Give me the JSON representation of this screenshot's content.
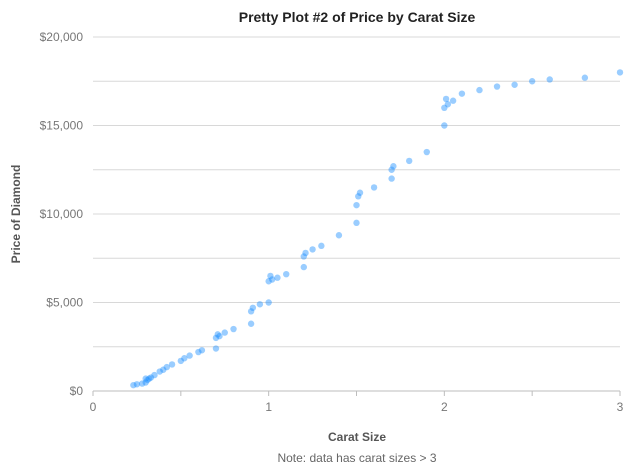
{
  "chart_data": {
    "type": "scatter",
    "title": "Pretty Plot #2 of Price by Carat Size",
    "xlabel": "Carat Size",
    "ylabel": "Price of Diamond",
    "note": "Note: data has carat sizes > 3",
    "xlim": [
      0,
      3
    ],
    "ylim": [
      0,
      20000
    ],
    "x_ticks": [
      {
        "value": 0,
        "label": "0"
      },
      {
        "value": 0.5,
        "label": ""
      },
      {
        "value": 1,
        "label": "1"
      },
      {
        "value": 1.5,
        "label": ""
      },
      {
        "value": 2,
        "label": "2"
      },
      {
        "value": 2.5,
        "label": ""
      },
      {
        "value": 3,
        "label": "3"
      }
    ],
    "y_ticks": [
      {
        "value": 0,
        "label": "$0"
      },
      {
        "value": 5000,
        "label": "$5,000"
      },
      {
        "value": 10000,
        "label": "$10,000"
      },
      {
        "value": 15000,
        "label": "$15,000"
      },
      {
        "value": 20000,
        "label": "$20,000"
      }
    ],
    "grid": true,
    "marker_color": "#1e90ff",
    "marker_opacity": 0.14,
    "series": [
      {
        "x": [
          0.23,
          0.25,
          0.28,
          0.3,
          0.3,
          0.31,
          0.32,
          0.33,
          0.35,
          0.38,
          0.4,
          0.42,
          0.45,
          0.5,
          0.52,
          0.55,
          0.6,
          0.62,
          0.7,
          0.7,
          0.71,
          0.72,
          0.75,
          0.8,
          0.9,
          0.9,
          0.91,
          0.95,
          1.0,
          1.0,
          1.01,
          1.02,
          1.05,
          1.1,
          1.2,
          1.2,
          1.21,
          1.25,
          1.3,
          1.4,
          1.5,
          1.5,
          1.51,
          1.52,
          1.6,
          1.7,
          1.7,
          1.71,
          1.8,
          1.9,
          2.0,
          2.0,
          2.01,
          2.02,
          2.05,
          2.1,
          2.2,
          2.3,
          2.4,
          2.5,
          2.6,
          2.8,
          3.0
        ],
        "y": [
          330,
          380,
          420,
          480,
          700,
          620,
          700,
          760,
          900,
          1100,
          1200,
          1350,
          1500,
          1700,
          1850,
          2000,
          2200,
          2300,
          2400,
          3000,
          3200,
          3100,
          3300,
          3500,
          3800,
          4500,
          4700,
          4900,
          5000,
          6200,
          6500,
          6300,
          6400,
          6600,
          7000,
          7600,
          7800,
          8000,
          8200,
          8800,
          9500,
          10500,
          11000,
          11200,
          11500,
          12000,
          12500,
          12700,
          13000,
          13500,
          15000,
          16000,
          16500,
          16200,
          16400,
          16800,
          17000,
          17200,
          17300,
          17500,
          17600,
          17700,
          18000
        ]
      }
    ]
  }
}
